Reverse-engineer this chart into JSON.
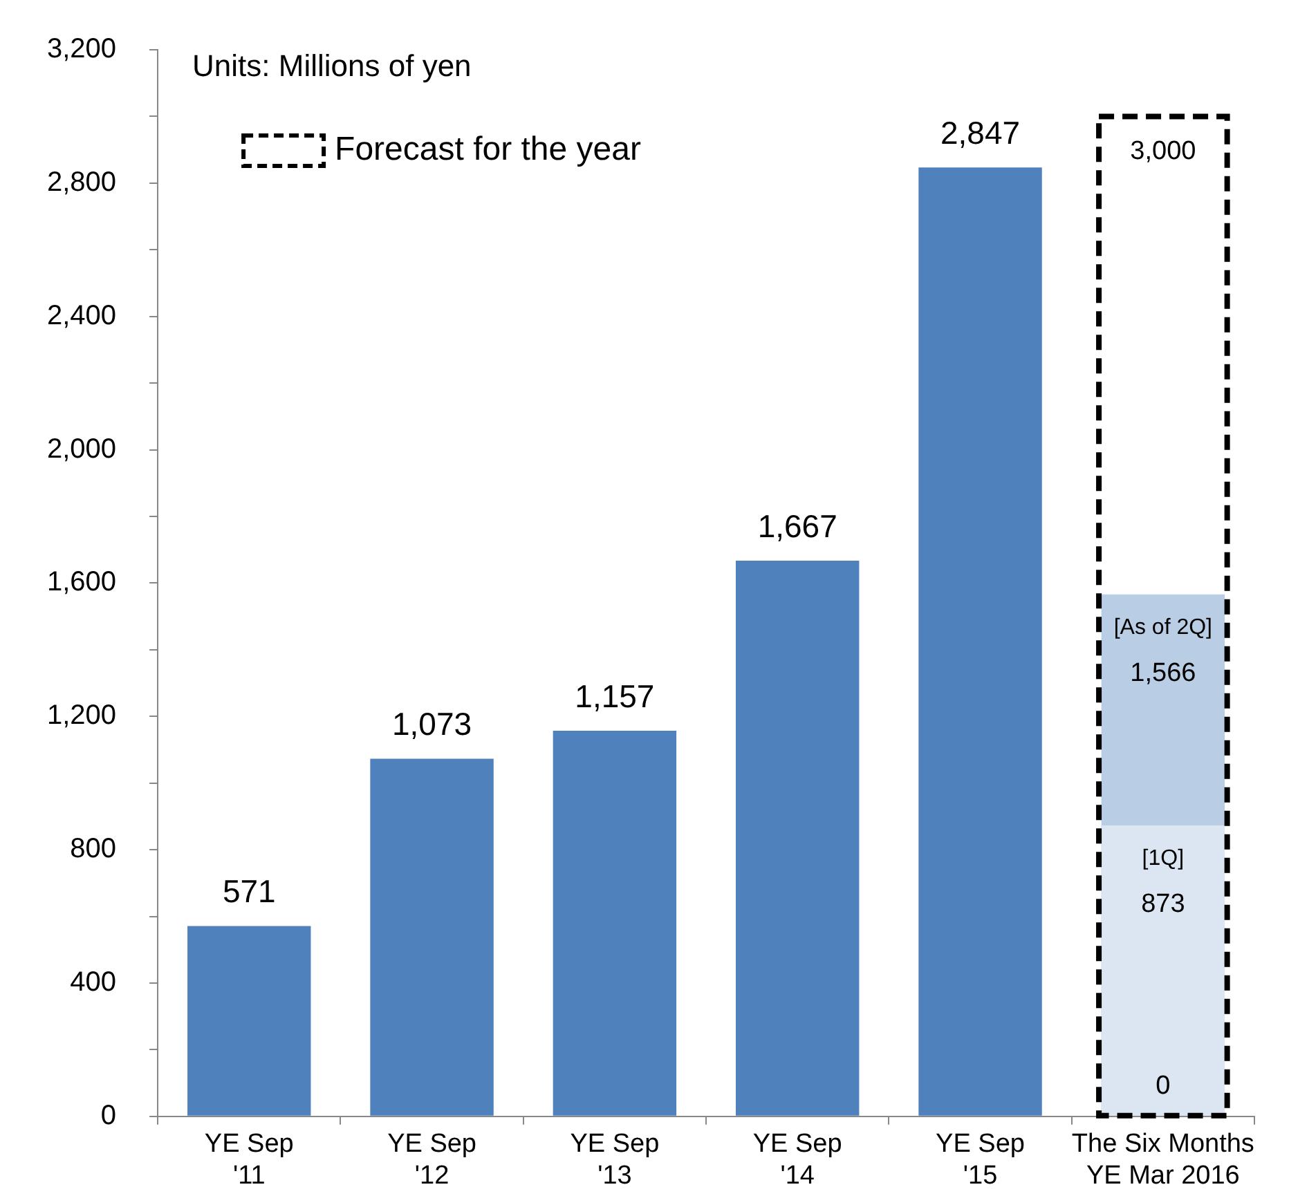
{
  "chart_data": {
    "type": "bar",
    "legend": "top left",
    "grid": false,
    "categories": [
      "YE Sep\n'11",
      "YE Sep\n'12",
      "YE Sep\n'13",
      "YE Sep\n'14",
      "YE Sep\n'15",
      "The Six Months\nYE Mar 2016"
    ],
    "series": [
      {
        "color": "#4f81bd",
        "values": [
          571,
          1073,
          1157,
          1667,
          2847,
          null
        ],
        "value_labels": [
          "571",
          "1,073",
          "1,157",
          "1,667",
          "2,847",
          null
        ]
      },
      {
        "name": "[As of 2Q]",
        "color": "#b9cde5",
        "values": [
          null,
          null,
          null,
          null,
          null,
          1566
        ],
        "value_labels": [
          null,
          null,
          null,
          null,
          null,
          "1,566"
        ]
      },
      {
        "name": "[1Q]",
        "color": "#dce6f2",
        "values": [
          null,
          null,
          null,
          null,
          null,
          873
        ],
        "value_labels": [
          null,
          null,
          null,
          null,
          null,
          "873"
        ]
      },
      {
        "color": "#dce6f2",
        "values": [
          null,
          null,
          null,
          null,
          null,
          0
        ],
        "value_labels": [
          null,
          null,
          null,
          null,
          null,
          "0"
        ]
      },
      {
        "name": "Forecast for the year",
        "color": "#000000",
        "line_style": "dashed",
        "values": [
          null,
          null,
          null,
          null,
          null,
          3000
        ],
        "value_labels": [
          null,
          null,
          null,
          null,
          null,
          "3,000"
        ]
      }
    ],
    "ylim": [
      0,
      3200
    ],
    "yticks": [
      0,
      {
        "value": 200,
        "label": null
      },
      400,
      {
        "value": 600,
        "label": null
      },
      800,
      {
        "value": 1000,
        "label": null
      },
      {
        "value": 1200,
        "label": "1,200"
      },
      {
        "value": 1400,
        "label": null
      },
      {
        "value": 1600,
        "label": "1,600"
      },
      {
        "value": 1800,
        "label": null
      },
      {
        "value": 2000,
        "label": "2,000"
      },
      {
        "value": 2200,
        "label": null
      },
      {
        "value": 2400,
        "label": "2,400"
      },
      {
        "value": 2600,
        "label": null
      },
      {
        "value": 2800,
        "label": "2,800"
      },
      {
        "value": 3000,
        "label": null
      },
      {
        "value": 3200,
        "label": "3,200"
      }
    ],
    "annotations": [
      "Units: Millions of yen"
    ]
  }
}
